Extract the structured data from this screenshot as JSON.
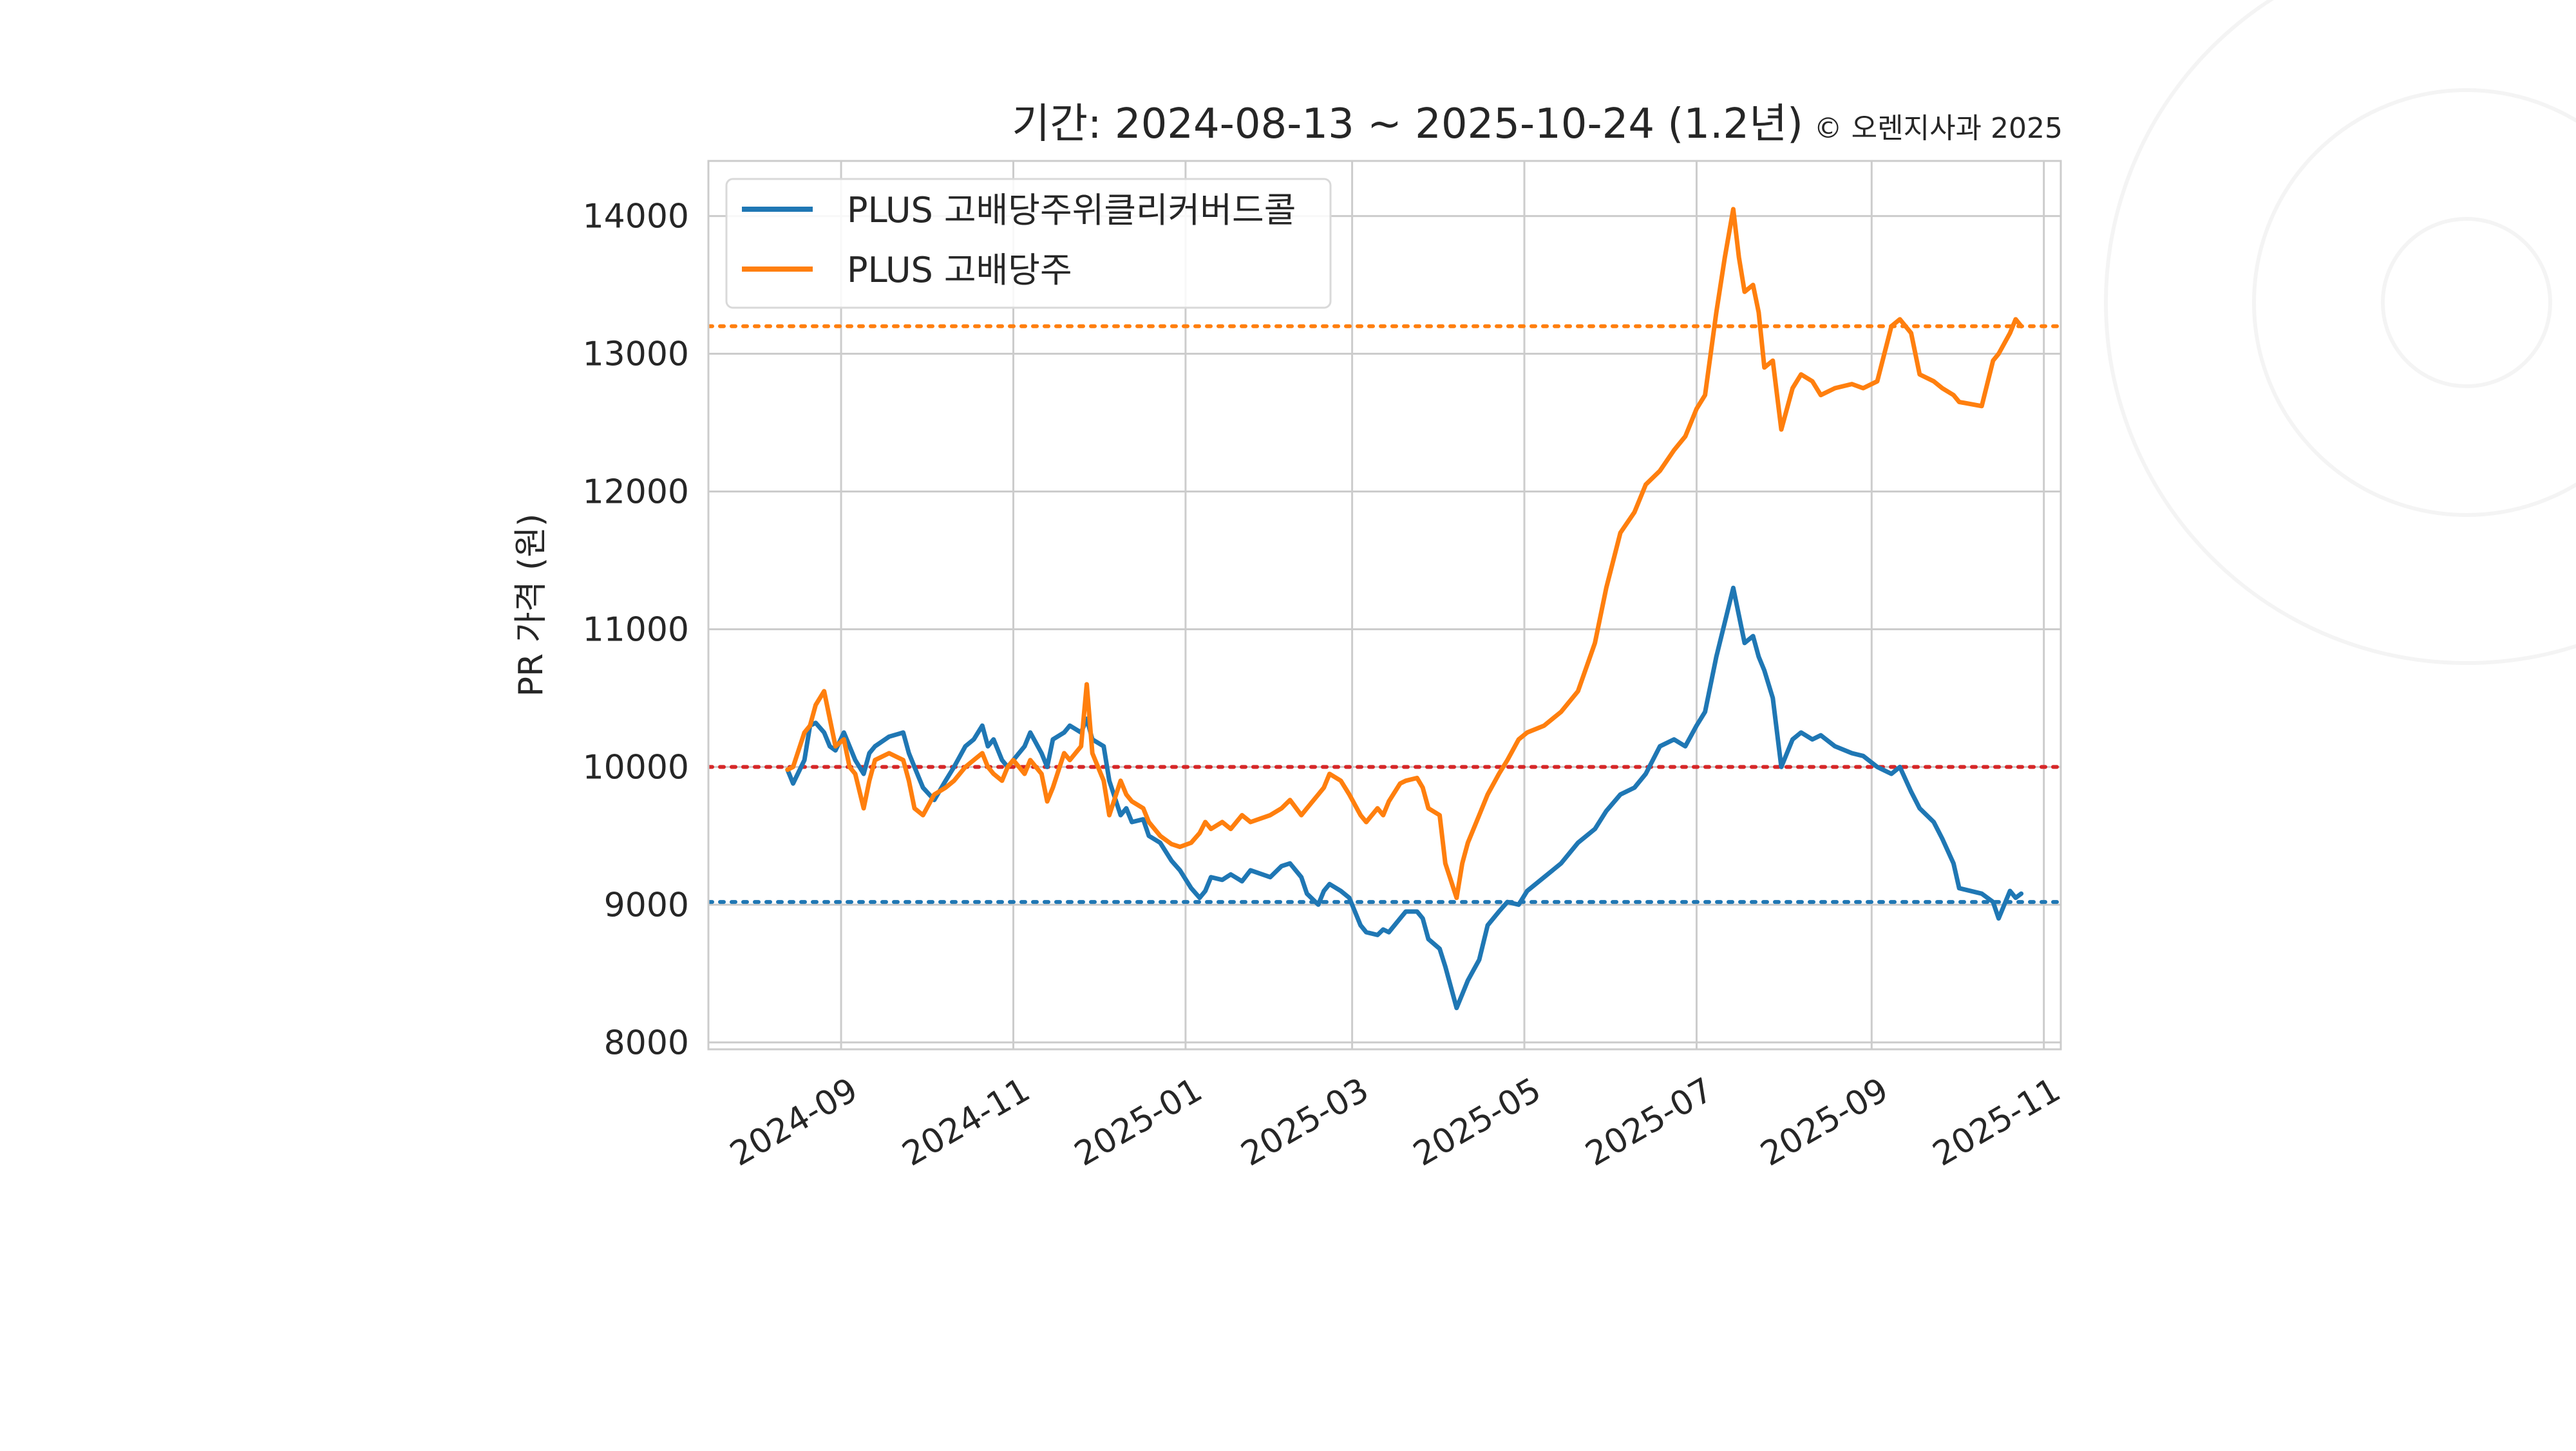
{
  "chart_data": {
    "type": "line",
    "title": "기간: 2024-08-13 ~ 2025-10-24 (1.2년)",
    "watermark": "© 오렌지사과 2025",
    "xlabel": "",
    "ylabel": "PR 가격 (원)",
    "grid": true,
    "legend_position": "top-left",
    "xlim": [
      "2024-07-16",
      "2025-11-07"
    ],
    "ylim": [
      7950,
      14400
    ],
    "x_ticks": [
      "2024-09",
      "2024-11",
      "2025-01",
      "2025-03",
      "2025-05",
      "2025-07",
      "2025-09",
      "2025-11"
    ],
    "y_ticks": [
      8000,
      9000,
      10000,
      11000,
      12000,
      13000,
      14000
    ],
    "reference_lines": [
      {
        "y": 13200,
        "color": "#ff7f0e",
        "style": "dotted"
      },
      {
        "y": 10000,
        "color": "#d62728",
        "style": "dotted"
      },
      {
        "y": 9020,
        "color": "#1f77b4",
        "style": "dotted"
      }
    ],
    "series": [
      {
        "name": "PLUS 고배당주위클리커버드콜",
        "color": "#1f77b4",
        "points": [
          [
            "2024-08-13",
            9980
          ],
          [
            "2024-08-15",
            9880
          ],
          [
            "2024-08-19",
            10050
          ],
          [
            "2024-08-21",
            10300
          ],
          [
            "2024-08-23",
            10320
          ],
          [
            "2024-08-26",
            10250
          ],
          [
            "2024-08-28",
            10150
          ],
          [
            "2024-08-30",
            10120
          ],
          [
            "2024-09-02",
            10250
          ],
          [
            "2024-09-04",
            10150
          ],
          [
            "2024-09-06",
            10050
          ],
          [
            "2024-09-09",
            9950
          ],
          [
            "2024-09-11",
            10100
          ],
          [
            "2024-09-13",
            10150
          ],
          [
            "2024-09-18",
            10220
          ],
          [
            "2024-09-23",
            10250
          ],
          [
            "2024-09-25",
            10100
          ],
          [
            "2024-09-27",
            10000
          ],
          [
            "2024-09-30",
            9850
          ],
          [
            "2024-10-04",
            9760
          ],
          [
            "2024-10-08",
            9900
          ],
          [
            "2024-10-11",
            10000
          ],
          [
            "2024-10-15",
            10150
          ],
          [
            "2024-10-18",
            10200
          ],
          [
            "2024-10-21",
            10300
          ],
          [
            "2024-10-23",
            10150
          ],
          [
            "2024-10-25",
            10200
          ],
          [
            "2024-10-28",
            10050
          ],
          [
            "2024-10-30",
            10000
          ],
          [
            "2024-11-01",
            10050
          ],
          [
            "2024-11-05",
            10150
          ],
          [
            "2024-11-07",
            10250
          ],
          [
            "2024-11-11",
            10100
          ],
          [
            "2024-11-13",
            10000
          ],
          [
            "2024-11-15",
            10200
          ],
          [
            "2024-11-19",
            10250
          ],
          [
            "2024-11-21",
            10300
          ],
          [
            "2024-11-25",
            10250
          ],
          [
            "2024-11-27",
            10350
          ],
          [
            "2024-11-29",
            10200
          ],
          [
            "2024-12-03",
            10150
          ],
          [
            "2024-12-05",
            9900
          ],
          [
            "2024-12-09",
            9650
          ],
          [
            "2024-12-11",
            9700
          ],
          [
            "2024-12-13",
            9600
          ],
          [
            "2024-12-17",
            9620
          ],
          [
            "2024-12-19",
            9500
          ],
          [
            "2024-12-23",
            9450
          ],
          [
            "2024-12-27",
            9320
          ],
          [
            "2024-12-30",
            9250
          ],
          [
            "2025-01-03",
            9120
          ],
          [
            "2025-01-06",
            9050
          ],
          [
            "2025-01-08",
            9100
          ],
          [
            "2025-01-10",
            9200
          ],
          [
            "2025-01-14",
            9180
          ],
          [
            "2025-01-17",
            9220
          ],
          [
            "2025-01-21",
            9170
          ],
          [
            "2025-01-24",
            9250
          ],
          [
            "2025-01-31",
            9200
          ],
          [
            "2025-02-04",
            9280
          ],
          [
            "2025-02-07",
            9300
          ],
          [
            "2025-02-11",
            9200
          ],
          [
            "2025-02-13",
            9080
          ],
          [
            "2025-02-17",
            9000
          ],
          [
            "2025-02-19",
            9100
          ],
          [
            "2025-02-21",
            9150
          ],
          [
            "2025-02-25",
            9100
          ],
          [
            "2025-02-28",
            9050
          ],
          [
            "2025-03-04",
            8850
          ],
          [
            "2025-03-06",
            8800
          ],
          [
            "2025-03-10",
            8780
          ],
          [
            "2025-03-12",
            8820
          ],
          [
            "2025-03-14",
            8800
          ],
          [
            "2025-03-18",
            8900
          ],
          [
            "2025-03-20",
            8950
          ],
          [
            "2025-03-24",
            8950
          ],
          [
            "2025-03-26",
            8900
          ],
          [
            "2025-03-28",
            8750
          ],
          [
            "2025-04-01",
            8680
          ],
          [
            "2025-04-03",
            8550
          ],
          [
            "2025-04-07",
            8250
          ],
          [
            "2025-04-09",
            8350
          ],
          [
            "2025-04-11",
            8450
          ],
          [
            "2025-04-15",
            8600
          ],
          [
            "2025-04-18",
            8850
          ],
          [
            "2025-04-22",
            8950
          ],
          [
            "2025-04-25",
            9020
          ],
          [
            "2025-04-29",
            9000
          ],
          [
            "2025-05-02",
            9100
          ],
          [
            "2025-05-08",
            9200
          ],
          [
            "2025-05-14",
            9300
          ],
          [
            "2025-05-20",
            9450
          ],
          [
            "2025-05-26",
            9550
          ],
          [
            "2025-05-30",
            9680
          ],
          [
            "2025-06-04",
            9800
          ],
          [
            "2025-06-09",
            9850
          ],
          [
            "2025-06-13",
            9950
          ],
          [
            "2025-06-18",
            10150
          ],
          [
            "2025-06-23",
            10200
          ],
          [
            "2025-06-27",
            10150
          ],
          [
            "2025-07-01",
            10300
          ],
          [
            "2025-07-04",
            10400
          ],
          [
            "2025-07-08",
            10800
          ],
          [
            "2025-07-11",
            11050
          ],
          [
            "2025-07-14",
            11300
          ],
          [
            "2025-07-16",
            11100
          ],
          [
            "2025-07-18",
            10900
          ],
          [
            "2025-07-21",
            10950
          ],
          [
            "2025-07-23",
            10800
          ],
          [
            "2025-07-25",
            10700
          ],
          [
            "2025-07-28",
            10500
          ],
          [
            "2025-07-31",
            10000
          ],
          [
            "2025-08-04",
            10200
          ],
          [
            "2025-08-07",
            10250
          ],
          [
            "2025-08-11",
            10200
          ],
          [
            "2025-08-14",
            10230
          ],
          [
            "2025-08-19",
            10150
          ],
          [
            "2025-08-25",
            10100
          ],
          [
            "2025-08-29",
            10080
          ],
          [
            "2025-09-03",
            10000
          ],
          [
            "2025-09-08",
            9950
          ],
          [
            "2025-09-11",
            10000
          ],
          [
            "2025-09-15",
            9820
          ],
          [
            "2025-09-18",
            9700
          ],
          [
            "2025-09-23",
            9600
          ],
          [
            "2025-09-26",
            9480
          ],
          [
            "2025-09-30",
            9300
          ],
          [
            "2025-10-02",
            9120
          ],
          [
            "2025-10-10",
            9080
          ],
          [
            "2025-10-14",
            9020
          ],
          [
            "2025-10-16",
            8900
          ],
          [
            "2025-10-20",
            9100
          ],
          [
            "2025-10-22",
            9050
          ],
          [
            "2025-10-24",
            9080
          ]
        ]
      },
      {
        "name": "PLUS 고배당주",
        "color": "#ff7f0e",
        "points": [
          [
            "2024-08-13",
            9980
          ],
          [
            "2024-08-15",
            10000
          ],
          [
            "2024-08-19",
            10250
          ],
          [
            "2024-08-21",
            10300
          ],
          [
            "2024-08-23",
            10450
          ],
          [
            "2024-08-26",
            10550
          ],
          [
            "2024-08-28",
            10350
          ],
          [
            "2024-08-30",
            10150
          ],
          [
            "2024-09-02",
            10200
          ],
          [
            "2024-09-04",
            10000
          ],
          [
            "2024-09-06",
            9950
          ],
          [
            "2024-09-09",
            9700
          ],
          [
            "2024-09-11",
            9900
          ],
          [
            "2024-09-13",
            10050
          ],
          [
            "2024-09-18",
            10100
          ],
          [
            "2024-09-23",
            10050
          ],
          [
            "2024-09-25",
            9900
          ],
          [
            "2024-09-27",
            9700
          ],
          [
            "2024-09-30",
            9650
          ],
          [
            "2024-10-04",
            9800
          ],
          [
            "2024-10-08",
            9850
          ],
          [
            "2024-10-11",
            9900
          ],
          [
            "2024-10-15",
            10000
          ],
          [
            "2024-10-18",
            10050
          ],
          [
            "2024-10-21",
            10100
          ],
          [
            "2024-10-23",
            10000
          ],
          [
            "2024-10-25",
            9950
          ],
          [
            "2024-10-28",
            9900
          ],
          [
            "2024-10-30",
            10000
          ],
          [
            "2024-11-01",
            10050
          ],
          [
            "2024-11-05",
            9950
          ],
          [
            "2024-11-07",
            10050
          ],
          [
            "2024-11-11",
            9950
          ],
          [
            "2024-11-13",
            9750
          ],
          [
            "2024-11-15",
            9850
          ],
          [
            "2024-11-19",
            10100
          ],
          [
            "2024-11-21",
            10050
          ],
          [
            "2024-11-25",
            10150
          ],
          [
            "2024-11-27",
            10600
          ],
          [
            "2024-11-29",
            10100
          ],
          [
            "2024-12-03",
            9900
          ],
          [
            "2024-12-05",
            9650
          ],
          [
            "2024-12-09",
            9900
          ],
          [
            "2024-12-11",
            9800
          ],
          [
            "2024-12-13",
            9750
          ],
          [
            "2024-12-17",
            9700
          ],
          [
            "2024-12-19",
            9600
          ],
          [
            "2024-12-23",
            9500
          ],
          [
            "2024-12-27",
            9440
          ],
          [
            "2024-12-30",
            9420
          ],
          [
            "2025-01-03",
            9450
          ],
          [
            "2025-01-06",
            9520
          ],
          [
            "2025-01-08",
            9600
          ],
          [
            "2025-01-10",
            9550
          ],
          [
            "2025-01-14",
            9600
          ],
          [
            "2025-01-17",
            9550
          ],
          [
            "2025-01-21",
            9650
          ],
          [
            "2025-01-24",
            9600
          ],
          [
            "2025-01-31",
            9650
          ],
          [
            "2025-02-04",
            9700
          ],
          [
            "2025-02-07",
            9760
          ],
          [
            "2025-02-11",
            9650
          ],
          [
            "2025-02-13",
            9700
          ],
          [
            "2025-02-17",
            9800
          ],
          [
            "2025-02-19",
            9850
          ],
          [
            "2025-02-21",
            9950
          ],
          [
            "2025-02-25",
            9900
          ],
          [
            "2025-02-28",
            9800
          ],
          [
            "2025-03-04",
            9650
          ],
          [
            "2025-03-06",
            9600
          ],
          [
            "2025-03-10",
            9700
          ],
          [
            "2025-03-12",
            9650
          ],
          [
            "2025-03-14",
            9750
          ],
          [
            "2025-03-18",
            9880
          ],
          [
            "2025-03-20",
            9900
          ],
          [
            "2025-03-24",
            9920
          ],
          [
            "2025-03-26",
            9850
          ],
          [
            "2025-03-28",
            9700
          ],
          [
            "2025-04-01",
            9650
          ],
          [
            "2025-04-03",
            9300
          ],
          [
            "2025-04-07",
            9050
          ],
          [
            "2025-04-09",
            9300
          ],
          [
            "2025-04-11",
            9450
          ],
          [
            "2025-04-15",
            9650
          ],
          [
            "2025-04-18",
            9800
          ],
          [
            "2025-04-22",
            9950
          ],
          [
            "2025-04-25",
            10050
          ],
          [
            "2025-04-29",
            10200
          ],
          [
            "2025-05-02",
            10250
          ],
          [
            "2025-05-08",
            10300
          ],
          [
            "2025-05-14",
            10400
          ],
          [
            "2025-05-20",
            10550
          ],
          [
            "2025-05-26",
            10900
          ],
          [
            "2025-05-30",
            11300
          ],
          [
            "2025-06-04",
            11700
          ],
          [
            "2025-06-09",
            11850
          ],
          [
            "2025-06-13",
            12050
          ],
          [
            "2025-06-18",
            12150
          ],
          [
            "2025-06-23",
            12300
          ],
          [
            "2025-06-27",
            12400
          ],
          [
            "2025-07-01",
            12600
          ],
          [
            "2025-07-04",
            12700
          ],
          [
            "2025-07-08",
            13300
          ],
          [
            "2025-07-11",
            13700
          ],
          [
            "2025-07-14",
            14050
          ],
          [
            "2025-07-16",
            13700
          ],
          [
            "2025-07-18",
            13450
          ],
          [
            "2025-07-21",
            13500
          ],
          [
            "2025-07-23",
            13300
          ],
          [
            "2025-07-25",
            12900
          ],
          [
            "2025-07-28",
            12950
          ],
          [
            "2025-07-31",
            12450
          ],
          [
            "2025-08-04",
            12750
          ],
          [
            "2025-08-07",
            12850
          ],
          [
            "2025-08-11",
            12800
          ],
          [
            "2025-08-14",
            12700
          ],
          [
            "2025-08-19",
            12750
          ],
          [
            "2025-08-25",
            12780
          ],
          [
            "2025-08-29",
            12750
          ],
          [
            "2025-09-03",
            12800
          ],
          [
            "2025-09-08",
            13200
          ],
          [
            "2025-09-11",
            13250
          ],
          [
            "2025-09-15",
            13150
          ],
          [
            "2025-09-18",
            12850
          ],
          [
            "2025-09-23",
            12800
          ],
          [
            "2025-09-26",
            12750
          ],
          [
            "2025-09-30",
            12700
          ],
          [
            "2025-10-02",
            12650
          ],
          [
            "2025-10-10",
            12620
          ],
          [
            "2025-10-14",
            12950
          ],
          [
            "2025-10-16",
            13000
          ],
          [
            "2025-10-20",
            13150
          ],
          [
            "2025-10-22",
            13250
          ],
          [
            "2025-10-24",
            13200
          ]
        ]
      }
    ]
  }
}
